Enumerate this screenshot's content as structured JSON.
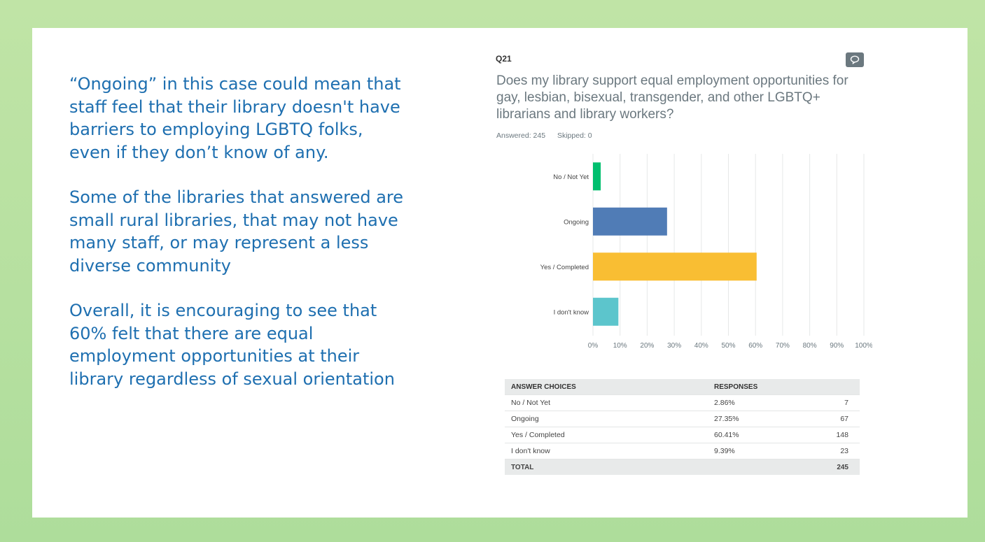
{
  "commentary": [
    "“Ongoing” in this case could mean that staff feel that their library doesn't have barriers to employing LGBTQ folks, even if they don’t know of any.",
    "Some of the libraries that answered are small rural libraries, that may not have many staff, or may represent a less diverse community",
    "Overall, it is encouraging to see that 60% felt that there are equal employment opportunities at their library regardless of sexual orientation"
  ],
  "question": {
    "number": "Q21",
    "text": "Does my library support equal employment opportunities for gay, lesbian, bisexual, transgender, and other LGBTQ+ librarians and library workers?",
    "answered": "Answered: 245",
    "skipped": "Skipped: 0"
  },
  "chart_data": {
    "type": "bar",
    "orientation": "horizontal",
    "categories": [
      "No / Not Yet",
      "Ongoing",
      "Yes / Completed",
      "I don't know"
    ],
    "values": [
      2.86,
      27.35,
      60.41,
      9.39
    ],
    "colors": [
      "#00bf6f",
      "#507cb6",
      "#f9be33",
      "#5cc5cc"
    ],
    "xticks": [
      "0%",
      "10%",
      "20%",
      "30%",
      "40%",
      "50%",
      "60%",
      "70%",
      "80%",
      "90%",
      "100%"
    ],
    "xlim": [
      0,
      100
    ],
    "grid": true
  },
  "table": {
    "headers": [
      "ANSWER CHOICES",
      "RESPONSES",
      ""
    ],
    "rows": [
      [
        "No / Not Yet",
        "2.86%",
        "7"
      ],
      [
        "Ongoing",
        "27.35%",
        "67"
      ],
      [
        "Yes / Completed",
        "60.41%",
        "148"
      ],
      [
        "I don't know",
        "9.39%",
        "23"
      ]
    ],
    "total": [
      "TOTAL",
      "",
      "245"
    ]
  }
}
